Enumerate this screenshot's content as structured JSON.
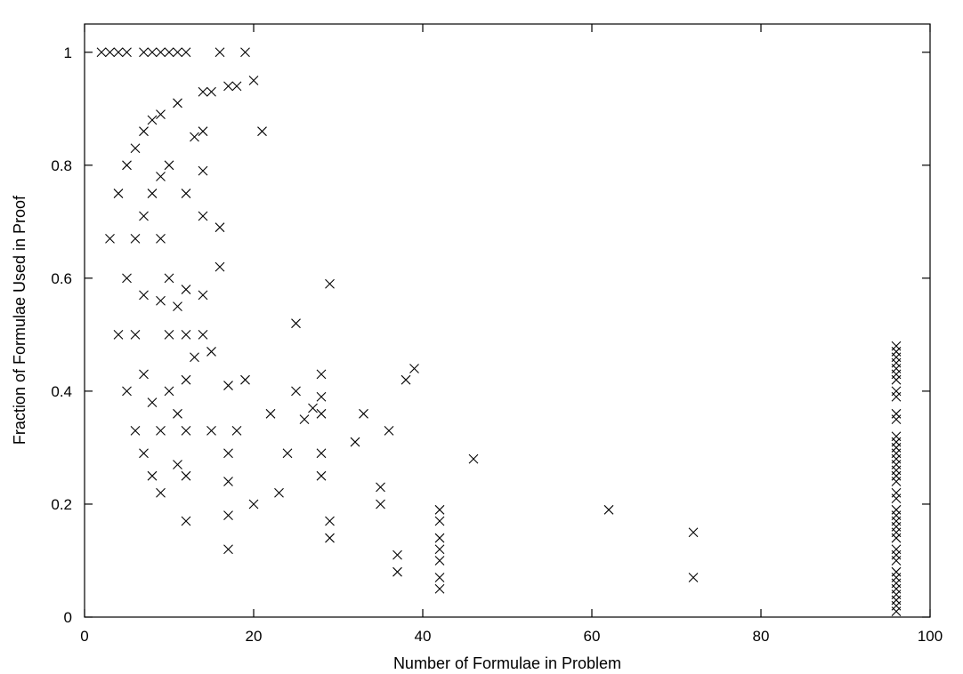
{
  "chart_data": {
    "type": "scatter",
    "title": "",
    "xlabel": "Number of Formulae in Problem",
    "ylabel": "Fraction of Formulae Used in Proof",
    "xlim": [
      0,
      100
    ],
    "ylim": [
      0,
      1.05
    ],
    "xticks": [
      0,
      20,
      40,
      60,
      80,
      100
    ],
    "yticks": [
      0,
      0.2,
      0.4,
      0.6,
      0.8,
      1
    ],
    "xtick_labels": [
      "0",
      "20",
      "40",
      "60",
      "80",
      "100"
    ],
    "ytick_labels": [
      "0",
      "0.2",
      "0.4",
      "0.6",
      "0.8",
      "1"
    ],
    "grid": false,
    "legend": "none",
    "marker": "x",
    "points": [
      [
        2,
        1
      ],
      [
        3,
        1
      ],
      [
        4,
        1
      ],
      [
        5,
        1
      ],
      [
        7,
        1
      ],
      [
        8,
        1
      ],
      [
        9,
        1
      ],
      [
        10,
        1
      ],
      [
        11,
        1
      ],
      [
        12,
        1
      ],
      [
        16,
        1
      ],
      [
        19,
        1
      ],
      [
        20,
        0.95
      ],
      [
        17,
        0.94
      ],
      [
        18,
        0.94
      ],
      [
        14,
        0.93
      ],
      [
        15,
        0.93
      ],
      [
        11,
        0.91
      ],
      [
        9,
        0.89
      ],
      [
        8,
        0.88
      ],
      [
        7,
        0.86
      ],
      [
        14,
        0.86
      ],
      [
        21,
        0.86
      ],
      [
        13,
        0.85
      ],
      [
        6,
        0.83
      ],
      [
        5,
        0.8
      ],
      [
        10,
        0.8
      ],
      [
        14,
        0.79
      ],
      [
        9,
        0.78
      ],
      [
        4,
        0.75
      ],
      [
        8,
        0.75
      ],
      [
        12,
        0.75
      ],
      [
        7,
        0.71
      ],
      [
        14,
        0.71
      ],
      [
        16,
        0.69
      ],
      [
        3,
        0.67
      ],
      [
        6,
        0.67
      ],
      [
        9,
        0.67
      ],
      [
        16,
        0.62
      ],
      [
        5,
        0.6
      ],
      [
        10,
        0.6
      ],
      [
        29,
        0.59
      ],
      [
        12,
        0.58
      ],
      [
        7,
        0.57
      ],
      [
        14,
        0.57
      ],
      [
        9,
        0.56
      ],
      [
        11,
        0.55
      ],
      [
        25,
        0.52
      ],
      [
        4,
        0.5
      ],
      [
        6,
        0.5
      ],
      [
        10,
        0.5
      ],
      [
        12,
        0.5
      ],
      [
        14,
        0.5
      ],
      [
        15,
        0.47
      ],
      [
        13,
        0.46
      ],
      [
        39,
        0.44
      ],
      [
        7,
        0.43
      ],
      [
        28,
        0.43
      ],
      [
        12,
        0.42
      ],
      [
        19,
        0.42
      ],
      [
        38,
        0.42
      ],
      [
        17,
        0.41
      ],
      [
        5,
        0.4
      ],
      [
        10,
        0.4
      ],
      [
        25,
        0.4
      ],
      [
        28,
        0.39
      ],
      [
        8,
        0.38
      ],
      [
        27,
        0.37
      ],
      [
        11,
        0.36
      ],
      [
        22,
        0.36
      ],
      [
        28,
        0.36
      ],
      [
        33,
        0.36
      ],
      [
        26,
        0.35
      ],
      [
        6,
        0.33
      ],
      [
        9,
        0.33
      ],
      [
        12,
        0.33
      ],
      [
        15,
        0.33
      ],
      [
        18,
        0.33
      ],
      [
        36,
        0.33
      ],
      [
        32,
        0.31
      ],
      [
        7,
        0.29
      ],
      [
        17,
        0.29
      ],
      [
        24,
        0.29
      ],
      [
        28,
        0.29
      ],
      [
        46,
        0.28
      ],
      [
        11,
        0.27
      ],
      [
        8,
        0.25
      ],
      [
        12,
        0.25
      ],
      [
        28,
        0.25
      ],
      [
        17,
        0.24
      ],
      [
        35,
        0.23
      ],
      [
        9,
        0.22
      ],
      [
        23,
        0.22
      ],
      [
        20,
        0.2
      ],
      [
        35,
        0.2
      ],
      [
        62,
        0.19
      ],
      [
        17,
        0.18
      ],
      [
        12,
        0.17
      ],
      [
        29,
        0.17
      ],
      [
        29,
        0.14
      ],
      [
        72,
        0.15
      ],
      [
        17,
        0.12
      ],
      [
        37,
        0.11
      ],
      [
        37,
        0.08
      ],
      [
        72,
        0.07
      ],
      [
        42,
        0.19
      ],
      [
        42,
        0.17
      ],
      [
        42,
        0.14
      ],
      [
        42,
        0.12
      ],
      [
        42,
        0.1
      ],
      [
        42,
        0.07
      ],
      [
        42,
        0.05
      ],
      [
        96,
        0.48
      ],
      [
        96,
        0.47
      ],
      [
        96,
        0.46
      ],
      [
        96,
        0.45
      ],
      [
        96,
        0.44
      ],
      [
        96,
        0.43
      ],
      [
        96,
        0.42
      ],
      [
        96,
        0.4
      ],
      [
        96,
        0.39
      ],
      [
        96,
        0.36
      ],
      [
        96,
        0.35
      ],
      [
        96,
        0.32
      ],
      [
        96,
        0.31
      ],
      [
        96,
        0.3
      ],
      [
        96,
        0.29
      ],
      [
        96,
        0.28
      ],
      [
        96,
        0.27
      ],
      [
        96,
        0.26
      ],
      [
        96,
        0.25
      ],
      [
        96,
        0.24
      ],
      [
        96,
        0.22
      ],
      [
        96,
        0.21
      ],
      [
        96,
        0.19
      ],
      [
        96,
        0.18
      ],
      [
        96,
        0.17
      ],
      [
        96,
        0.16
      ],
      [
        96,
        0.15
      ],
      [
        96,
        0.14
      ],
      [
        96,
        0.12
      ],
      [
        96,
        0.11
      ],
      [
        96,
        0.1
      ],
      [
        96,
        0.08
      ],
      [
        96,
        0.07
      ],
      [
        96,
        0.06
      ],
      [
        96,
        0.05
      ],
      [
        96,
        0.04
      ],
      [
        96,
        0.03
      ],
      [
        96,
        0.02
      ],
      [
        96,
        0.01
      ]
    ]
  }
}
